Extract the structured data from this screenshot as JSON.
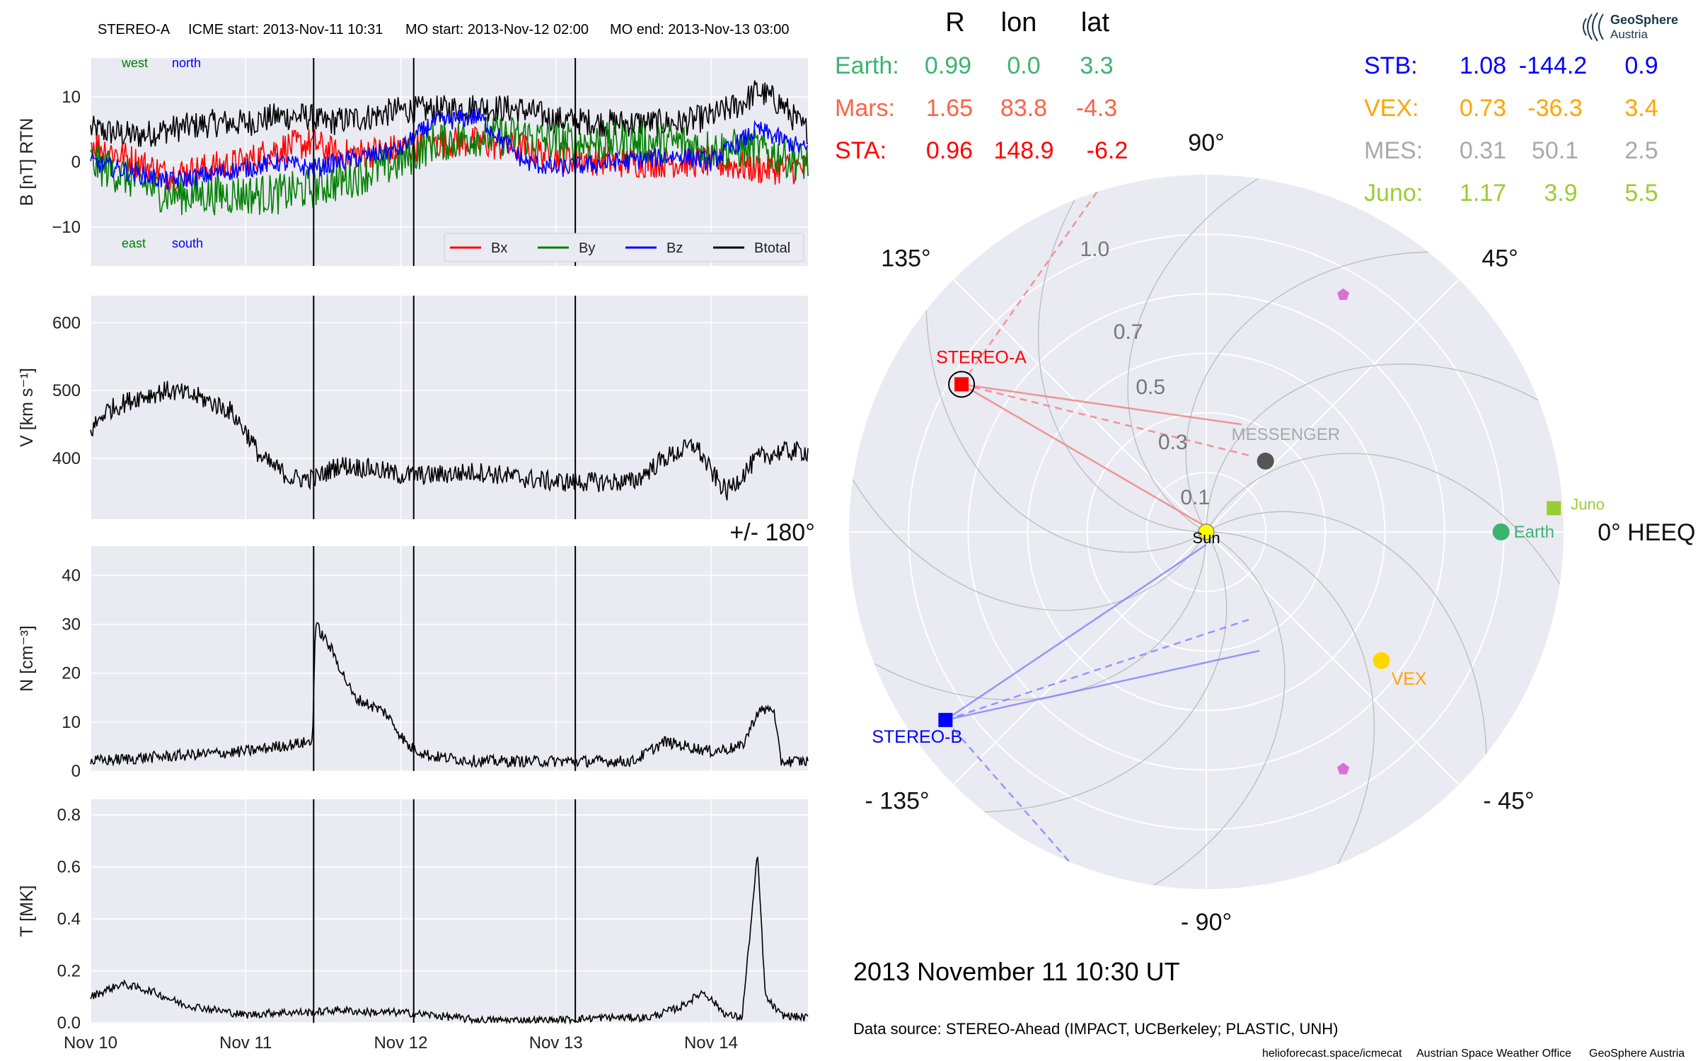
{
  "header": {
    "spacecraft": "STEREO-A",
    "icme_start": "ICME start: 2013-Nov-11 10:31",
    "mo_start": "MO start: 2013-Nov-12 02:00",
    "mo_end": "MO end: 2013-Nov-13 03:00"
  },
  "colors": {
    "bx": "#ff0000",
    "by": "#008000",
    "bz": "#0000ff",
    "btotal": "#000000",
    "panel_bg": "#eaeaf2",
    "grid": "#ffffff",
    "earth": "#3cb371",
    "mars": "#fa6446",
    "sta": "#ff0000",
    "stb": "#0000ff",
    "vex": "#ffa500",
    "mes": "#a9a9a9",
    "juno": "#9acd32",
    "sun": "#ffff00",
    "psp": "#da70d6"
  },
  "time_axis": {
    "ticks": [
      "Nov 10",
      "Nov 11",
      "Nov 12",
      "Nov 13",
      "Nov 14"
    ],
    "start": "2013-11-10 00:00",
    "end": "2013-11-14 15:00"
  },
  "event_lines": [
    "2013-11-11 10:31",
    "2013-11-12 02:00",
    "2013-11-13 03:00"
  ],
  "chart_data": [
    {
      "type": "line",
      "panel": "magnetic_field",
      "ylabel": "B [nT] RTN",
      "ylim": [
        -16,
        16
      ],
      "yticks": [
        "10",
        "0",
        "−10"
      ],
      "annotations": {
        "top_left": "west",
        "top_right": "north",
        "bottom_left": "east",
        "bottom_right": "south"
      },
      "legend": {
        "placement": "lower right",
        "entries": [
          "Bx",
          "By",
          "Bz",
          "Btotal"
        ]
      },
      "series": [
        {
          "name": "Btotal",
          "color": "#000000",
          "x_days": [
            0,
            0.3,
            0.5,
            0.8,
            1.0,
            1.2,
            1.4,
            1.5,
            1.8,
            2.0,
            2.2,
            2.5,
            2.8,
            3.0,
            3.3,
            3.5,
            3.8,
            4.0,
            4.2,
            4.3,
            4.45,
            4.6
          ],
          "values": [
            5,
            4,
            5,
            6,
            6,
            7,
            7,
            6,
            7,
            8,
            8,
            8.5,
            8,
            6.5,
            6,
            6,
            6,
            7,
            9,
            11,
            9,
            5
          ]
        },
        {
          "name": "Bx",
          "color": "#ff0000",
          "x_days": [
            0,
            0.5,
            1.0,
            1.2,
            1.43,
            1.6,
            2.0,
            2.2,
            2.5,
            2.8,
            3.0,
            3.4,
            3.8,
            4.0,
            4.3,
            4.6
          ],
          "values": [
            3,
            -2,
            0,
            2,
            3,
            1,
            2,
            3,
            3,
            2,
            1,
            0,
            0,
            0,
            -1,
            -1
          ]
        },
        {
          "name": "By",
          "color": "#008000",
          "x_days": [
            0,
            0.5,
            1.0,
            1.2,
            1.43,
            1.6,
            2.0,
            2.2,
            2.5,
            2.8,
            3.0,
            3.4,
            3.8,
            4.0,
            4.3,
            4.6
          ],
          "values": [
            0,
            -5,
            -5,
            -5,
            -4,
            -3,
            0,
            3,
            4,
            4,
            3,
            3,
            3,
            2,
            2,
            0
          ]
        },
        {
          "name": "Bz",
          "color": "#0000ff",
          "x_days": [
            0,
            0.5,
            1.0,
            1.2,
            1.43,
            1.6,
            2.0,
            2.2,
            2.5,
            2.8,
            3.0,
            3.4,
            3.8,
            4.0,
            4.3,
            4.6
          ],
          "values": [
            0,
            -3,
            -1,
            0,
            -1,
            0,
            2,
            6,
            7,
            0,
            -1,
            0,
            1,
            0,
            5,
            2
          ]
        }
      ]
    },
    {
      "type": "line",
      "panel": "speed",
      "ylabel": "V [km s⁻¹]",
      "ylim": [
        310,
        640
      ],
      "yticks": [
        "600",
        "500",
        "400"
      ],
      "series": [
        {
          "name": "V",
          "color": "#000000",
          "x_days": [
            0,
            0.1,
            0.3,
            0.5,
            0.7,
            0.9,
            1.0,
            1.1,
            1.3,
            1.45,
            1.6,
            1.8,
            2.0,
            2.2,
            2.5,
            2.8,
            3.0,
            3.3,
            3.5,
            3.7,
            3.9,
            4.0,
            4.1,
            4.3,
            4.45,
            4.6
          ],
          "values": [
            440,
            470,
            490,
            500,
            490,
            470,
            440,
            400,
            370,
            370,
            390,
            385,
            375,
            375,
            380,
            370,
            365,
            365,
            365,
            400,
            420,
            380,
            350,
            400,
            410,
            410
          ]
        }
      ]
    },
    {
      "type": "line",
      "panel": "density",
      "ylabel": "N [cm⁻³]",
      "ylim": [
        0,
        46
      ],
      "yticks": [
        "40",
        "30",
        "20",
        "10",
        "0"
      ],
      "series": [
        {
          "name": "N",
          "color": "#000000",
          "x_days": [
            0,
            0.5,
            1.0,
            1.2,
            1.43,
            1.45,
            1.55,
            1.7,
            1.9,
            2.05,
            2.2,
            2.5,
            3.0,
            3.5,
            3.7,
            4.0,
            4.2,
            4.3,
            4.4,
            4.45,
            4.6
          ],
          "values": [
            2,
            3,
            4,
            5,
            6,
            30,
            25,
            15,
            12,
            5,
            3,
            2,
            2,
            2,
            6,
            4,
            5,
            12,
            13,
            2,
            2
          ]
        }
      ]
    },
    {
      "type": "line",
      "panel": "temperature",
      "ylabel": "T [MK]",
      "ylim": [
        0,
        0.86
      ],
      "yticks": [
        "0.8",
        "0.6",
        "0.4",
        "0.2",
        "0.0"
      ],
      "series": [
        {
          "name": "T",
          "color": "#000000",
          "x_days": [
            0,
            0.2,
            0.4,
            0.6,
            0.8,
            1.0,
            1.2,
            1.43,
            1.6,
            1.8,
            2.0,
            2.2,
            2.5,
            3.0,
            3.3,
            3.6,
            3.8,
            3.95,
            4.1,
            4.2,
            4.3,
            4.35,
            4.45,
            4.6
          ],
          "values": [
            0.1,
            0.15,
            0.12,
            0.07,
            0.05,
            0.03,
            0.04,
            0.04,
            0.05,
            0.04,
            0.04,
            0.03,
            0.01,
            0.01,
            0.02,
            0.02,
            0.06,
            0.12,
            0.03,
            0.02,
            0.65,
            0.1,
            0.03,
            0.02
          ]
        }
      ]
    },
    {
      "type": "scatter",
      "panel": "heliospheric_positions",
      "coordinate_system": "0° HEEQ",
      "table_headers": [
        "R",
        "lon",
        "lat"
      ],
      "bodies": [
        {
          "key": "Earth",
          "label": "Earth:",
          "R": "0.99",
          "lon": "0.0",
          "lat": "3.3"
        },
        {
          "key": "Mars",
          "label": "Mars:",
          "R": "1.65",
          "lon": "83.8",
          "lat": "-4.3"
        },
        {
          "key": "STA",
          "label": "STA:",
          "R": "0.96",
          "lon": "148.9",
          "lat": "-6.2"
        },
        {
          "key": "STB",
          "label": "STB:",
          "R": "1.08",
          "lon": "-144.2",
          "lat": "0.9"
        },
        {
          "key": "VEX",
          "label": "VEX:",
          "R": "0.73",
          "lon": "-36.3",
          "lat": "3.4"
        },
        {
          "key": "MES",
          "label": "MES:",
          "R": "0.31",
          "lon": "50.1",
          "lat": "2.5"
        },
        {
          "key": "Juno",
          "label": "Juno:",
          "R": "1.17",
          "lon": "3.9",
          "lat": "5.5"
        }
      ],
      "markers": [
        {
          "name": "Sun",
          "label": "Sun",
          "r": 0.0,
          "lon": 0,
          "marker": "circle",
          "color": "#ffff00"
        },
        {
          "name": "Earth",
          "label": "Earth",
          "r": 0.99,
          "lon": 0.0,
          "marker": "circle",
          "color": "#3cb371"
        },
        {
          "name": "STEREO-A",
          "label": "STEREO-A",
          "r": 0.96,
          "lon": 148.9,
          "marker": "square",
          "color": "#ff0000"
        },
        {
          "name": "STEREO-B",
          "label": "STEREO-B",
          "r": 1.08,
          "lon": -144.2,
          "marker": "square",
          "color": "#0000ff"
        },
        {
          "name": "VEX",
          "label": "VEX",
          "r": 0.73,
          "lon": -36.3,
          "marker": "circle",
          "color": "#ffd700"
        },
        {
          "name": "MESSENGER",
          "label": "MESSENGER",
          "r": 0.31,
          "lon": 50.1,
          "marker": "circle",
          "color": "#555555"
        },
        {
          "name": "Juno",
          "label": "Juno",
          "r": 1.17,
          "lon": 3.9,
          "marker": "square",
          "color": "#9acd32"
        },
        {
          "name": "PSP-1",
          "label": "",
          "r": 0.92,
          "lon": 60,
          "marker": "pentagon",
          "color": "#da70d6"
        },
        {
          "name": "PSP-2",
          "label": "",
          "r": 0.92,
          "lon": -60,
          "marker": "pentagon",
          "color": "#da70d6"
        }
      ],
      "radial_ticks": [
        "0.1",
        "0.3",
        "0.5",
        "0.7",
        "1.0"
      ],
      "angle_labels": [
        "90°",
        "45°",
        "0° HEEQ",
        "- 45°",
        "- 90°",
        "- 135°",
        "+/- 180°",
        "135°"
      ],
      "rlim": [
        0,
        1.2
      ]
    }
  ],
  "timestamp": "2013 November 11  10:30 UT",
  "data_source": "Data source: STEREO-Ahead (IMPACT, UCBerkeley; PLASTIC, UNH)",
  "footer": {
    "site": "helioforecast.space/icmecat",
    "office": "Austrian Space Weather Office",
    "org": "GeoSphere Austria"
  },
  "logo": {
    "line1": "GeoSphere",
    "line2": "Austria"
  }
}
